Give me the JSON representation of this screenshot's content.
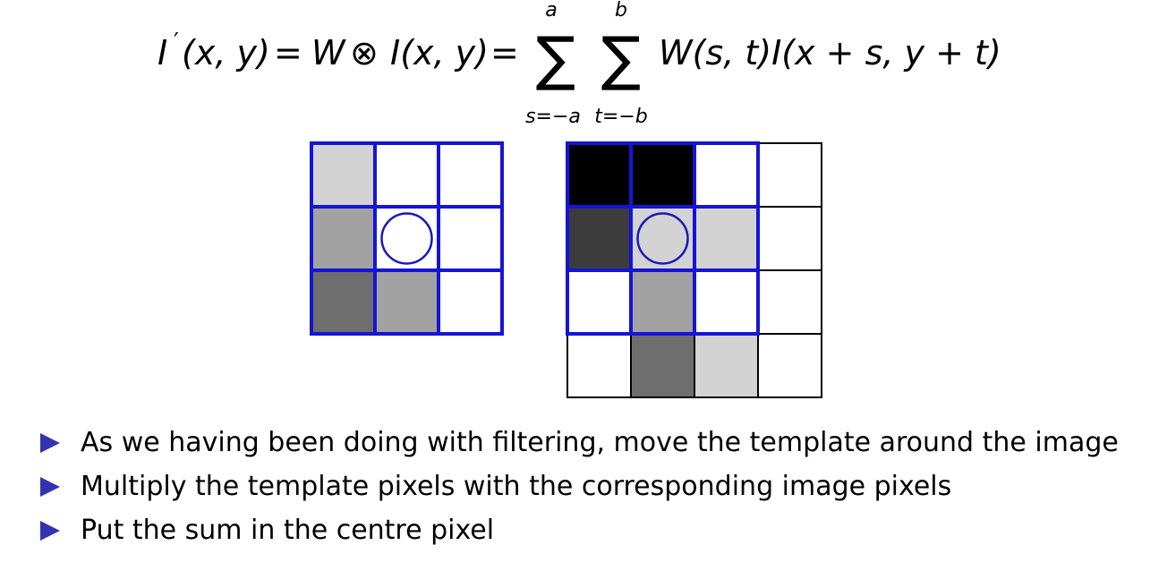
{
  "equation": {
    "lhs_I": "I",
    "prime": "′",
    "args": "(x, y)",
    "eq": "=",
    "W": "W",
    "otimes": "⊗",
    "I_xy": "I(x, y)",
    "sum1_upper": "a",
    "sum1_lower": "s=−a",
    "sum2_upper": "b",
    "sum2_lower": "t=−b",
    "sum_symbol": "∑",
    "term": "W(s, t)I(x + s, y + t)"
  },
  "template_grid": {
    "rows": 3,
    "cols": 3,
    "center": [
      1,
      1
    ],
    "cells": [
      [
        "#d3d3d3",
        "#ffffff",
        "#ffffff"
      ],
      [
        "#a2a2a2",
        "#ffffff",
        "#ffffff"
      ],
      [
        "#6e6e6e",
        "#a2a2a2",
        "#ffffff"
      ]
    ]
  },
  "image_grid": {
    "rows": 4,
    "cols": 4,
    "center": [
      1,
      1
    ],
    "window": {
      "row": 0,
      "col": 0,
      "rows": 3,
      "cols": 3
    },
    "cells": [
      [
        "#000000",
        "#000000",
        "#ffffff",
        "#ffffff"
      ],
      [
        "#3c3c3c",
        "#d3d3d3",
        "#d3d3d3",
        "#ffffff"
      ],
      [
        "#ffffff",
        "#a2a2a2",
        "#ffffff",
        "#ffffff"
      ],
      [
        "#ffffff",
        "#6e6e6e",
        "#d3d3d3",
        "#ffffff"
      ]
    ]
  },
  "colors": {
    "grid_blue": "#1515d6",
    "circle_blue": "#1a1ab8",
    "bullet": "#3333b2"
  },
  "bullets": [
    "As we having been doing with filtering, move the template around the image",
    "Multiply the template pixels with the corresponding image pixels",
    "Put the sum in the centre pixel"
  ]
}
